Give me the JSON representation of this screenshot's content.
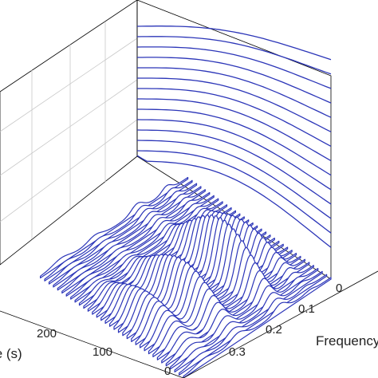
{
  "chart_data": {
    "type": "waterfall",
    "title": "",
    "xlabel": "Frequency",
    "ylabel": "Time (s)",
    "zlabel": "",
    "color": "#2b35b8",
    "x_ticks": [
      "0",
      "0.1",
      "0.2",
      "0.3"
    ],
    "y_ticks": [
      "0",
      "100",
      "200"
    ],
    "xlim": [
      0,
      0.35
    ],
    "ylim": [
      0,
      300
    ],
    "grid": true,
    "legend": "none",
    "n_traces": 34,
    "peak_frequencies": [
      0.05,
      0.12,
      0.22,
      0.3
    ],
    "note_view": "3D view with frequency along the right-front axis and time along the left-front axis"
  }
}
